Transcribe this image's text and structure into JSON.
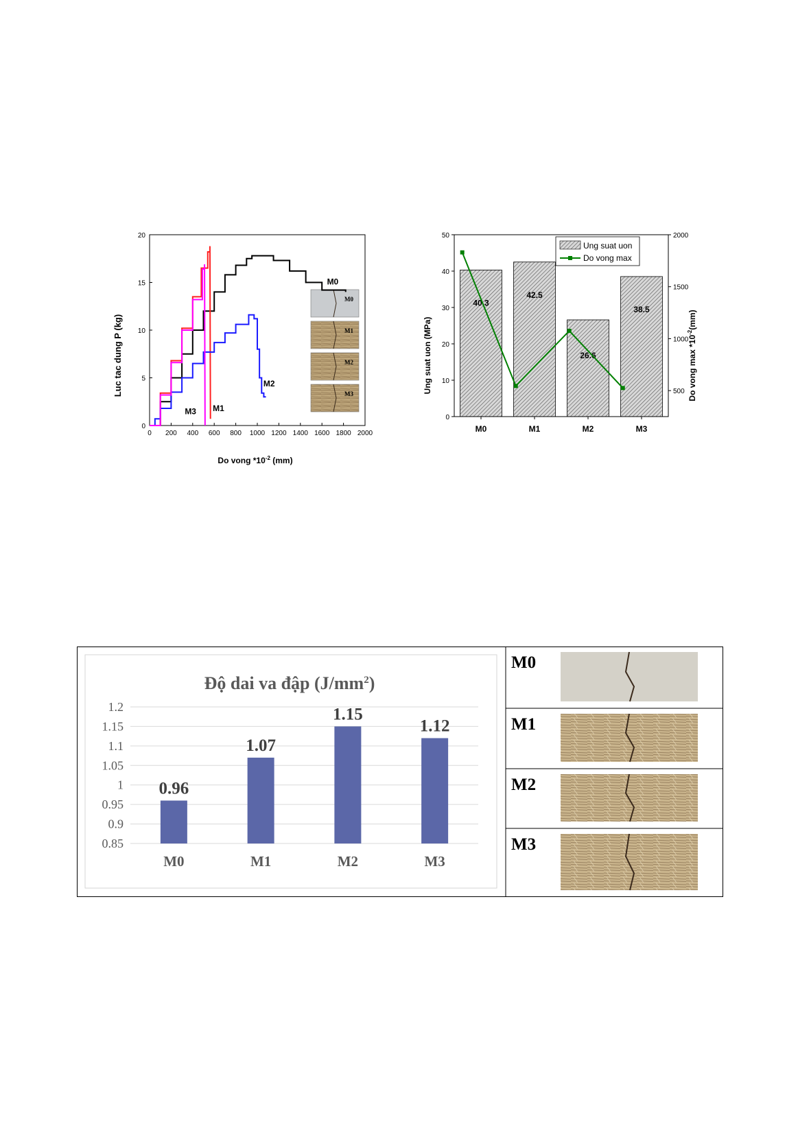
{
  "chart_data": [
    {
      "type": "line",
      "xlabel": "Do vong *10",
      "xlabel_sup": "-2",
      "xlabel_unit": " (mm)",
      "ylabel": "Luc tac dung P (kg)",
      "xlim": [
        0,
        2000
      ],
      "ylim": [
        0,
        20
      ],
      "xticks": [
        0,
        200,
        400,
        600,
        800,
        1000,
        1200,
        1400,
        1600,
        1800,
        2000
      ],
      "yticks": [
        0,
        5,
        10,
        15,
        20
      ],
      "series": [
        {
          "name": "M0",
          "color": "#000000",
          "points": [
            [
              0,
              0
            ],
            [
              100,
              2.5
            ],
            [
              200,
              5
            ],
            [
              300,
              7.5
            ],
            [
              400,
              10
            ],
            [
              500,
              12
            ],
            [
              600,
              14
            ],
            [
              700,
              15.8
            ],
            [
              800,
              16.8
            ],
            [
              900,
              17.5
            ],
            [
              950,
              17.8
            ],
            [
              1050,
              17.8
            ],
            [
              1150,
              17.3
            ],
            [
              1300,
              16.2
            ],
            [
              1450,
              15
            ],
            [
              1600,
              14.2
            ],
            [
              1820,
              14
            ]
          ]
        },
        {
          "name": "M1",
          "color": "#ff2020",
          "points": [
            [
              0,
              0
            ],
            [
              100,
              3.4
            ],
            [
              200,
              6.8
            ],
            [
              300,
              10.2
            ],
            [
              400,
              13.5
            ],
            [
              480,
              16.5
            ],
            [
              540,
              18.2
            ],
            [
              560,
              18.8
            ],
            [
              565,
              0.7
            ]
          ]
        },
        {
          "name": "M2",
          "color": "#1a1aff",
          "points": [
            [
              0,
              0
            ],
            [
              50,
              0.7
            ],
            [
              100,
              1.8
            ],
            [
              200,
              3.5
            ],
            [
              300,
              5
            ],
            [
              400,
              6.5
            ],
            [
              500,
              7.7
            ],
            [
              600,
              8.7
            ],
            [
              700,
              9.7
            ],
            [
              800,
              10.6
            ],
            [
              920,
              11.6
            ],
            [
              970,
              11.2
            ],
            [
              1000,
              8
            ],
            [
              1020,
              5
            ],
            [
              1040,
              3.4
            ],
            [
              1060,
              3
            ],
            [
              1080,
              3
            ]
          ]
        },
        {
          "name": "M3",
          "color": "#ff00ff",
          "points": [
            [
              0,
              0
            ],
            [
              100,
              3.2
            ],
            [
              200,
              6.6
            ],
            [
              300,
              10
            ],
            [
              400,
              13.2
            ],
            [
              490,
              16.4
            ],
            [
              510,
              16.9
            ],
            [
              515,
              0
            ]
          ]
        }
      ],
      "curve_labels": [
        "M0",
        "M1",
        "M2",
        "M3"
      ],
      "inset_labels": [
        "M0",
        "M1",
        "M2",
        "M3"
      ]
    },
    {
      "type": "bar",
      "categories": [
        "M0",
        "M1",
        "M2",
        "M3"
      ],
      "bar_series": {
        "name": "Ung suat uon",
        "values": [
          40.3,
          42.5,
          26.6,
          38.5
        ]
      },
      "line_series": {
        "name": "Do vong max",
        "values": [
          1830,
          545,
          1075,
          525
        ],
        "color": "#008000"
      },
      "ylabel": "Ung suat uon (MPa)",
      "y2label": "Do vong max *10",
      "y2label_sup": "-2",
      "y2label_unit": "(mm)",
      "ylim": [
        0,
        50
      ],
      "y2lim": [
        250,
        2000
      ],
      "yticks": [
        0,
        10,
        20,
        30,
        40,
        50
      ],
      "y2ticks": [
        500,
        1000,
        1500,
        2000
      ],
      "value_labels": [
        "40.3",
        "42.5",
        "26.6",
        "38.5"
      ],
      "legend_position": "top-right"
    },
    {
      "type": "bar",
      "title": "Độ dai va đập (J/mm",
      "title_sup": "2",
      "title_end": ")",
      "categories": [
        "M0",
        "M1",
        "M2",
        "M3"
      ],
      "values": [
        0.96,
        1.07,
        1.15,
        1.12
      ],
      "value_labels": [
        "0.96",
        "1.07",
        "1.15",
        "1.12"
      ],
      "ylim": [
        0.85,
        1.2
      ],
      "yticks": [
        "0.85",
        "0.9",
        "0.95",
        "1",
        "1.05",
        "1.1",
        "1.15",
        "1.2"
      ],
      "bar_color": "#5b67a8",
      "sample_labels": [
        "M0",
        "M1",
        "M2",
        "M3"
      ]
    }
  ]
}
